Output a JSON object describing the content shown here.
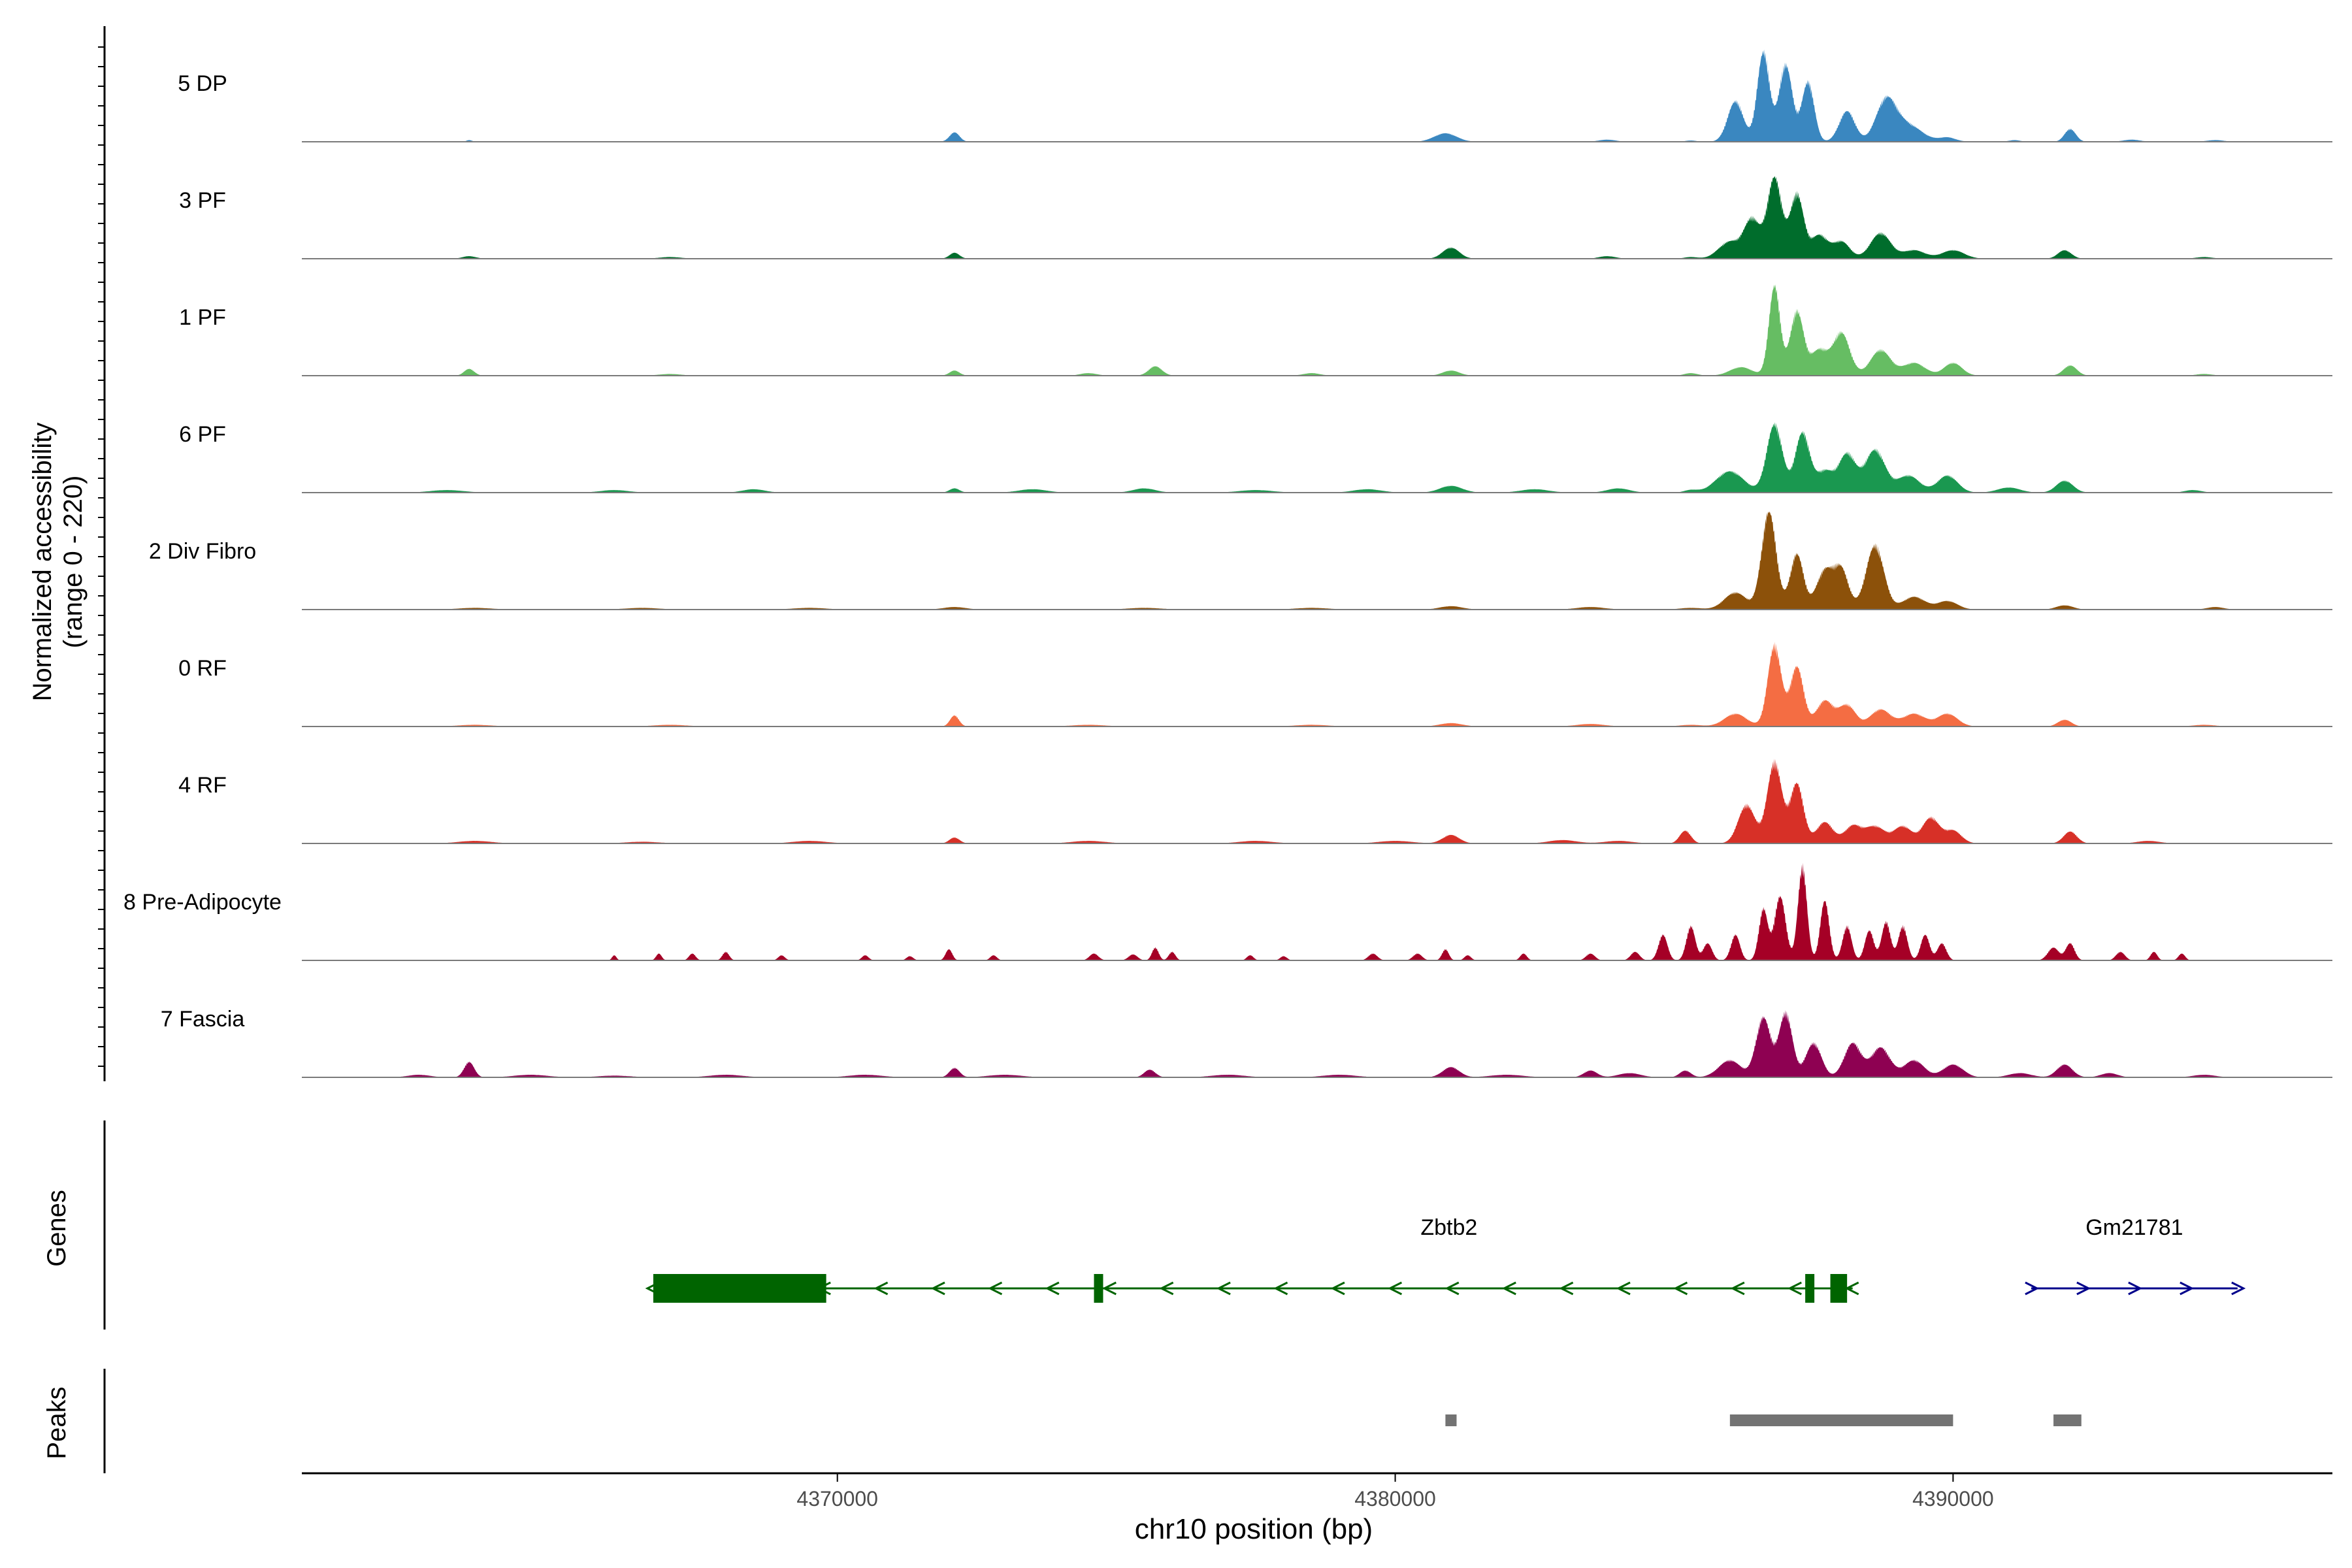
{
  "chart_data": {
    "type": "area",
    "ylabel_line1": "Normalized accessibility",
    "ylabel_line2": "(range 0 - 220)",
    "xlabel": "chr10 position (bp)",
    "x_tick_labels": [
      "4370000",
      "4380000",
      "4390000"
    ],
    "x_ticks": [
      4370000,
      4380000,
      4390000
    ],
    "xlim": [
      4360400,
      4396800
    ],
    "ylim": [
      0,
      220
    ],
    "tracks": [
      {
        "name": "5 DP",
        "color": "#3A87C0",
        "peaks": [
          [
            4363400,
            4,
            50
          ],
          [
            4372100,
            22,
            90
          ],
          [
            4380900,
            20,
            200
          ],
          [
            4383800,
            5,
            150
          ],
          [
            4385300,
            3,
            100
          ],
          [
            4386100,
            95,
            140
          ],
          [
            4386600,
            210,
            110
          ],
          [
            4387000,
            180,
            120
          ],
          [
            4387400,
            140,
            110
          ],
          [
            4388100,
            72,
            140
          ],
          [
            4388800,
            95,
            180
          ],
          [
            4389200,
            38,
            250
          ],
          [
            4389900,
            10,
            150
          ],
          [
            4391100,
            4,
            100
          ],
          [
            4392100,
            30,
            100
          ],
          [
            4393200,
            5,
            150
          ],
          [
            4394700,
            4,
            150
          ]
        ]
      },
      {
        "name": "3 PF",
        "color": "#006D2C",
        "peaks": [
          [
            4363400,
            6,
            120
          ],
          [
            4367000,
            4,
            200
          ],
          [
            4372100,
            14,
            90
          ],
          [
            4381000,
            26,
            150
          ],
          [
            4383800,
            6,
            150
          ],
          [
            4385300,
            4,
            120
          ],
          [
            4386000,
            40,
            200
          ],
          [
            4386400,
            90,
            140
          ],
          [
            4386800,
            190,
            130
          ],
          [
            4387200,
            150,
            120
          ],
          [
            4387600,
            55,
            150
          ],
          [
            4388000,
            40,
            150
          ],
          [
            4388700,
            60,
            180
          ],
          [
            4389300,
            20,
            200
          ],
          [
            4390000,
            20,
            200
          ],
          [
            4392000,
            20,
            120
          ],
          [
            4394500,
            4,
            150
          ]
        ]
      },
      {
        "name": "1 PF",
        "color": "#66BD63",
        "peaks": [
          [
            4363400,
            16,
            90
          ],
          [
            4367000,
            4,
            200
          ],
          [
            4372100,
            12,
            90
          ],
          [
            4374500,
            6,
            150
          ],
          [
            4375700,
            22,
            120
          ],
          [
            4378500,
            6,
            150
          ],
          [
            4381000,
            12,
            150
          ],
          [
            4385300,
            6,
            120
          ],
          [
            4386200,
            20,
            200
          ],
          [
            4386800,
            210,
            100
          ],
          [
            4387200,
            150,
            120
          ],
          [
            4387600,
            60,
            150
          ],
          [
            4388000,
            100,
            150
          ],
          [
            4388700,
            60,
            180
          ],
          [
            4389300,
            30,
            200
          ],
          [
            4390000,
            30,
            160
          ],
          [
            4392100,
            24,
            120
          ],
          [
            4394500,
            4,
            150
          ]
        ]
      },
      {
        "name": "6 PF",
        "color": "#1A9850",
        "peaks": [
          [
            4363000,
            6,
            300
          ],
          [
            4366000,
            6,
            250
          ],
          [
            4368500,
            8,
            200
          ],
          [
            4372100,
            10,
            90
          ],
          [
            4373500,
            8,
            250
          ],
          [
            4375500,
            10,
            200
          ],
          [
            4377500,
            6,
            300
          ],
          [
            4379500,
            8,
            250
          ],
          [
            4381000,
            16,
            200
          ],
          [
            4382500,
            8,
            250
          ],
          [
            4384000,
            10,
            200
          ],
          [
            4385300,
            6,
            120
          ],
          [
            4386000,
            50,
            250
          ],
          [
            4386800,
            160,
            140
          ],
          [
            4387300,
            140,
            130
          ],
          [
            4387700,
            50,
            150
          ],
          [
            4388100,
            90,
            150
          ],
          [
            4388600,
            100,
            180
          ],
          [
            4389200,
            40,
            200
          ],
          [
            4389900,
            40,
            180
          ],
          [
            4391000,
            12,
            200
          ],
          [
            4392000,
            28,
            150
          ],
          [
            4394300,
            6,
            150
          ]
        ]
      },
      {
        "name": "2 Div Fibro",
        "color": "#8C510A",
        "peaks": [
          [
            4363500,
            4,
            300
          ],
          [
            4366500,
            4,
            300
          ],
          [
            4369500,
            4,
            300
          ],
          [
            4372100,
            6,
            200
          ],
          [
            4375500,
            4,
            300
          ],
          [
            4378500,
            4,
            300
          ],
          [
            4381000,
            8,
            200
          ],
          [
            4383500,
            6,
            250
          ],
          [
            4385300,
            4,
            200
          ],
          [
            4386100,
            40,
            200
          ],
          [
            4386700,
            230,
            130
          ],
          [
            4387200,
            130,
            120
          ],
          [
            4387700,
            90,
            150
          ],
          [
            4388000,
            90,
            130
          ],
          [
            4388600,
            150,
            160
          ],
          [
            4389300,
            30,
            200
          ],
          [
            4389900,
            20,
            180
          ],
          [
            4392000,
            10,
            150
          ],
          [
            4394700,
            6,
            150
          ]
        ]
      },
      {
        "name": "0 RF",
        "color": "#F46D43",
        "peaks": [
          [
            4363500,
            4,
            300
          ],
          [
            4367000,
            4,
            300
          ],
          [
            4372100,
            26,
            80
          ],
          [
            4374500,
            4,
            300
          ],
          [
            4378500,
            4,
            300
          ],
          [
            4381000,
            8,
            200
          ],
          [
            4383500,
            6,
            250
          ],
          [
            4385300,
            4,
            200
          ],
          [
            4386100,
            30,
            200
          ],
          [
            4386800,
            190,
            120
          ],
          [
            4387200,
            140,
            120
          ],
          [
            4387700,
            60,
            150
          ],
          [
            4388100,
            50,
            150
          ],
          [
            4388700,
            40,
            180
          ],
          [
            4389300,
            30,
            200
          ],
          [
            4389900,
            30,
            180
          ],
          [
            4392000,
            16,
            120
          ],
          [
            4394500,
            4,
            200
          ]
        ]
      },
      {
        "name": "4 RF",
        "color": "#D73027",
        "peaks": [
          [
            4363500,
            6,
            300
          ],
          [
            4366500,
            4,
            300
          ],
          [
            4369500,
            6,
            300
          ],
          [
            4372100,
            14,
            90
          ],
          [
            4374500,
            6,
            300
          ],
          [
            4377500,
            6,
            300
          ],
          [
            4380000,
            6,
            300
          ],
          [
            4381000,
            20,
            150
          ],
          [
            4383000,
            8,
            250
          ],
          [
            4384000,
            6,
            250
          ],
          [
            4385200,
            30,
            100
          ],
          [
            4386300,
            90,
            150
          ],
          [
            4386800,
            190,
            130
          ],
          [
            4387200,
            140,
            120
          ],
          [
            4387700,
            50,
            150
          ],
          [
            4388200,
            40,
            150
          ],
          [
            4388600,
            40,
            180
          ],
          [
            4389100,
            40,
            160
          ],
          [
            4389600,
            60,
            150
          ],
          [
            4390000,
            30,
            150
          ],
          [
            4392100,
            28,
            120
          ],
          [
            4393500,
            6,
            200
          ]
        ]
      },
      {
        "name": "8 Pre-Adipocyte",
        "color": "#A50026",
        "peaks": [
          [
            4366000,
            12,
            40
          ],
          [
            4366800,
            16,
            50
          ],
          [
            4367400,
            16,
            60
          ],
          [
            4368000,
            20,
            60
          ],
          [
            4369000,
            12,
            60
          ],
          [
            4370500,
            12,
            60
          ],
          [
            4371300,
            10,
            60
          ],
          [
            4372000,
            26,
            60
          ],
          [
            4372800,
            12,
            60
          ],
          [
            4374600,
            16,
            80
          ],
          [
            4375300,
            14,
            80
          ],
          [
            4375700,
            30,
            60
          ],
          [
            4376000,
            20,
            60
          ],
          [
            4377400,
            12,
            60
          ],
          [
            4378000,
            10,
            60
          ],
          [
            4379600,
            16,
            80
          ],
          [
            4380400,
            16,
            80
          ],
          [
            4380900,
            26,
            60
          ],
          [
            4381300,
            12,
            60
          ],
          [
            4382300,
            16,
            60
          ],
          [
            4383500,
            16,
            80
          ],
          [
            4384300,
            20,
            80
          ],
          [
            4384800,
            60,
            80
          ],
          [
            4385300,
            80,
            80
          ],
          [
            4385600,
            40,
            80
          ],
          [
            4386100,
            60,
            80
          ],
          [
            4386600,
            120,
            80
          ],
          [
            4386900,
            150,
            100
          ],
          [
            4387300,
            220,
            80
          ],
          [
            4387700,
            140,
            80
          ],
          [
            4388100,
            80,
            80
          ],
          [
            4388500,
            70,
            80
          ],
          [
            4388800,
            90,
            80
          ],
          [
            4389100,
            80,
            80
          ],
          [
            4389500,
            60,
            80
          ],
          [
            4389800,
            40,
            80
          ],
          [
            4391800,
            30,
            100
          ],
          [
            4392100,
            40,
            80
          ],
          [
            4393000,
            20,
            80
          ],
          [
            4393600,
            20,
            60
          ],
          [
            4394100,
            16,
            60
          ]
        ]
      },
      {
        "name": "7 Fascia",
        "color": "#8E0152",
        "peaks": [
          [
            4362500,
            6,
            200
          ],
          [
            4363400,
            36,
            90
          ],
          [
            4364500,
            6,
            300
          ],
          [
            4366000,
            4,
            300
          ],
          [
            4368000,
            6,
            300
          ],
          [
            4370500,
            6,
            300
          ],
          [
            4372100,
            22,
            90
          ],
          [
            4373000,
            6,
            300
          ],
          [
            4375600,
            18,
            100
          ],
          [
            4377000,
            6,
            300
          ],
          [
            4379000,
            6,
            300
          ],
          [
            4381000,
            24,
            150
          ],
          [
            4382000,
            6,
            300
          ],
          [
            4383500,
            16,
            120
          ],
          [
            4384200,
            10,
            200
          ],
          [
            4385200,
            16,
            100
          ],
          [
            4386000,
            40,
            200
          ],
          [
            4386600,
            140,
            130
          ],
          [
            4387000,
            150,
            120
          ],
          [
            4387500,
            80,
            140
          ],
          [
            4388200,
            80,
            150
          ],
          [
            4388700,
            70,
            170
          ],
          [
            4389300,
            40,
            180
          ],
          [
            4390000,
            30,
            180
          ],
          [
            4391200,
            10,
            200
          ],
          [
            4392000,
            30,
            140
          ],
          [
            4392800,
            10,
            150
          ],
          [
            4394500,
            6,
            200
          ]
        ]
      }
    ],
    "genes_label": "Genes",
    "genes": [
      {
        "name": "Zbtb2",
        "start": 4366700,
        "end": 4388200,
        "strand": "-",
        "color": "#006400",
        "exons": [
          [
            4366700,
            4369800,
            "utr"
          ],
          [
            4374600,
            4374750,
            "cds"
          ],
          [
            4387350,
            4387450,
            "cds"
          ],
          [
            4387800,
            4388100,
            "cds"
          ]
        ]
      },
      {
        "name": "Gm21781",
        "start": 4391400,
        "end": 4395100,
        "strand": "+",
        "color": "#00008B",
        "exons": []
      }
    ],
    "peaks_label": "Peaks",
    "peak_regions": [
      [
        4380900,
        4381100
      ],
      [
        4386000,
        4390000
      ],
      [
        4391800,
        4392300
      ]
    ],
    "peak_color": "#737373"
  }
}
